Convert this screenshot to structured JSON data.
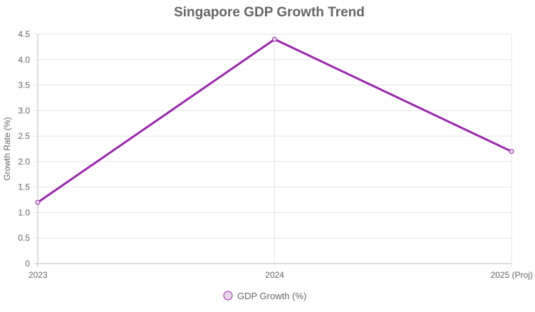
{
  "chart_data": {
    "type": "line",
    "title": "Singapore GDP Growth Trend",
    "xlabel": "",
    "ylabel": "Growth Rate (%)",
    "categories": [
      "2023",
      "2024",
      "2025 (Proj)"
    ],
    "series": [
      {
        "name": "GDP Growth (%)",
        "values": [
          1.2,
          4.4,
          2.2
        ],
        "color": "#9c27b0",
        "point_fill": "#e8d7ec"
      }
    ],
    "ylim": [
      0,
      4.5
    ],
    "yticks": [
      "0",
      "0.5",
      "1.0",
      "1.5",
      "2.0",
      "2.5",
      "3.0",
      "3.5",
      "4.0",
      "4.5"
    ],
    "grid": true,
    "legend_position": "bottom"
  }
}
